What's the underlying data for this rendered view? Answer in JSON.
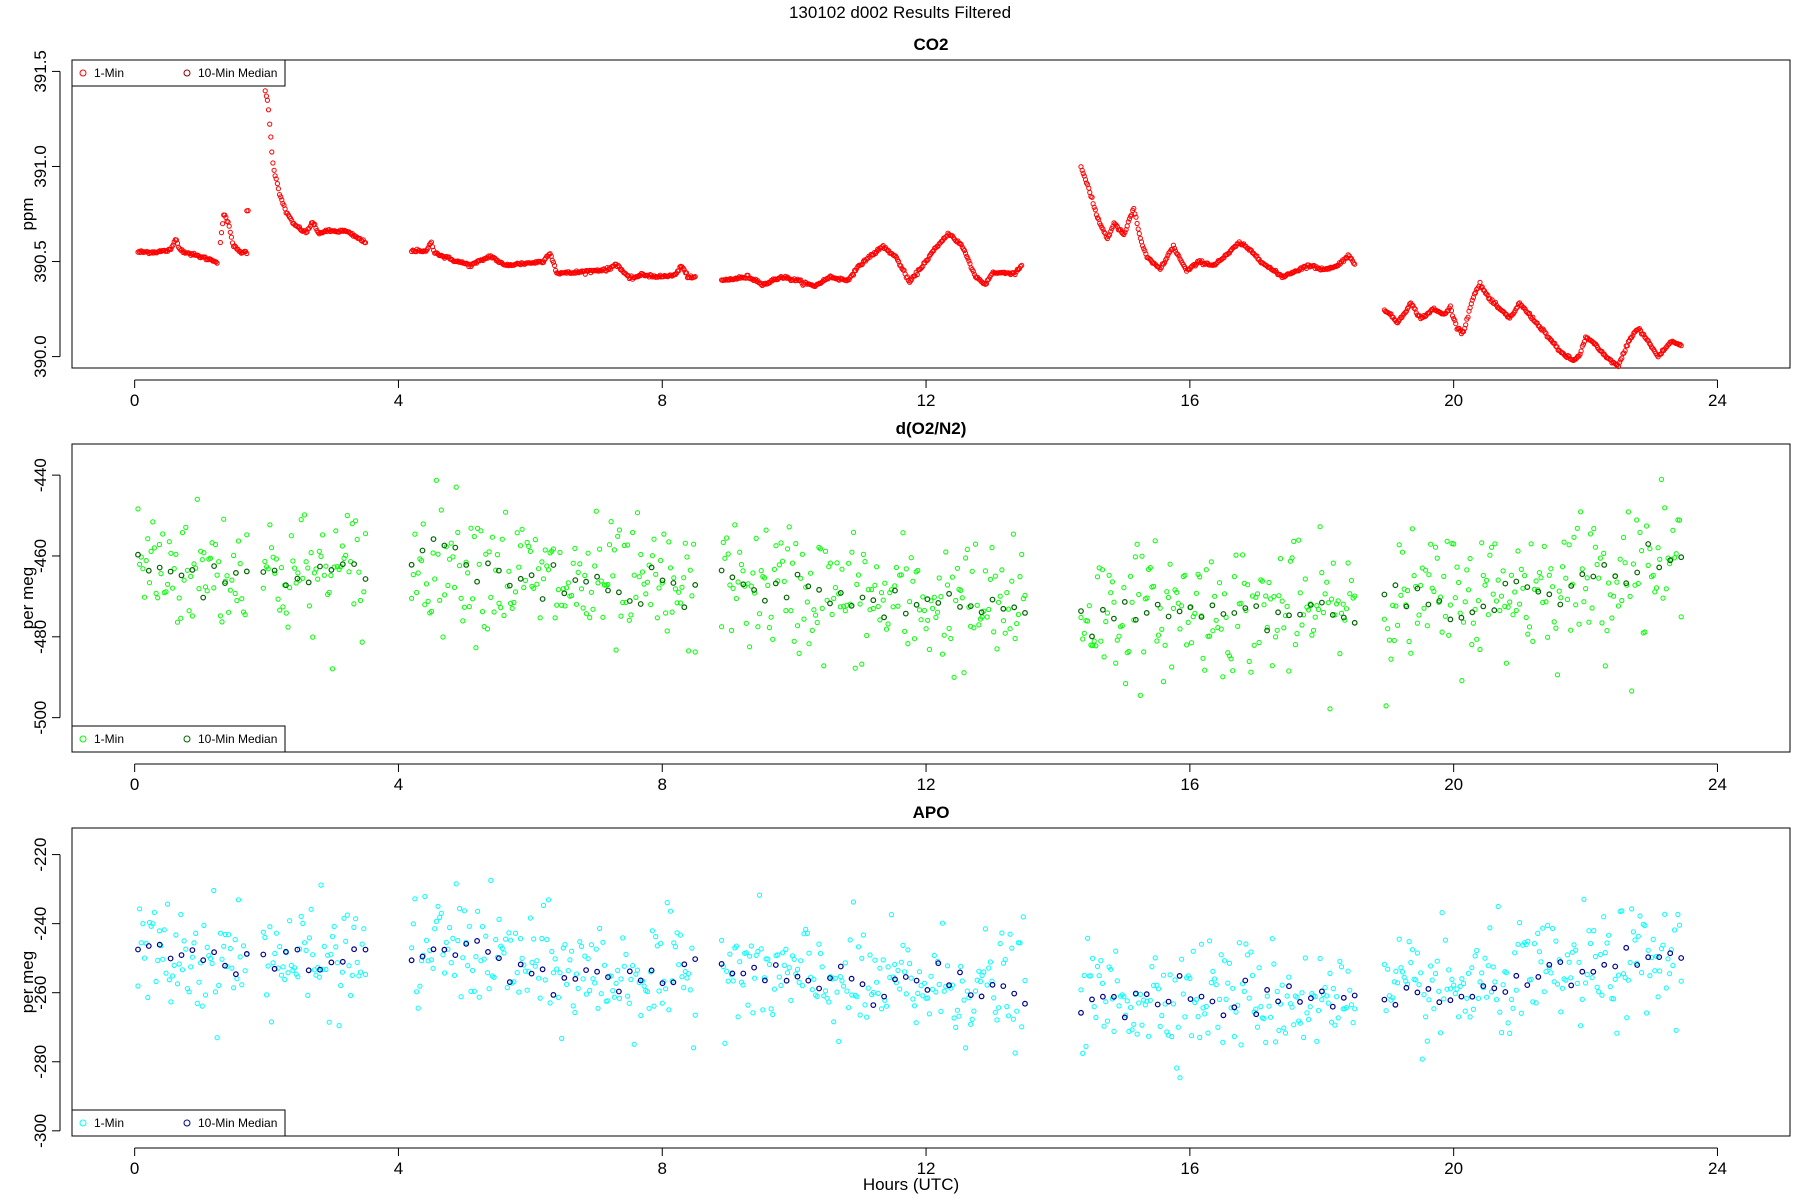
{
  "figure": {
    "title": "130102   d002   Results Filtered",
    "xlabel": "Hours (UTC)"
  },
  "chart_data": [
    {
      "type": "scatter",
      "title": "CO2",
      "ylabel": "ppm",
      "xlim": [
        -0.95,
        25.1
      ],
      "ylim": [
        389.94,
        391.56
      ],
      "xticks": [
        0,
        4,
        8,
        12,
        16,
        20,
        24
      ],
      "yticks": [
        390.0,
        390.5,
        391.0,
        391.5
      ],
      "ytick_labels": [
        "390.0",
        "390.5",
        "391.0",
        "391.5"
      ],
      "legend_position": "top-left",
      "series": [
        {
          "name": "1-Min",
          "color": "#ff0000",
          "x": [],
          "y": []
        },
        {
          "name": "10-Min Median",
          "color": "#8b0000",
          "x": [],
          "y": []
        }
      ],
      "profile": {
        "kind": "line",
        "segments": [
          {
            "x": [
              0.05,
              0.3,
              0.55,
              0.62,
              0.7,
              0.85,
              1.05,
              1.25
            ],
            "y": [
              390.55,
              390.55,
              390.56,
              390.62,
              390.56,
              390.54,
              390.52,
              390.5
            ]
          },
          {
            "x": [
              1.3,
              1.35,
              1.42,
              1.5,
              1.6,
              1.7
            ],
            "y": [
              390.6,
              390.75,
              390.7,
              390.58,
              390.55,
              390.55
            ]
          },
          {
            "x": [
              1.7,
              1.72
            ],
            "y": [
              390.77,
              390.77
            ]
          },
          {
            "x": [
              1.98,
              2.02,
              2.1,
              2.2,
              2.3,
              2.4,
              2.6,
              2.7,
              2.78,
              2.9,
              3.2,
              3.4,
              3.5
            ],
            "y": [
              391.4,
              391.34,
              391.0,
              390.85,
              390.76,
              390.7,
              390.65,
              390.71,
              390.65,
              390.66,
              390.66,
              390.62,
              390.6
            ]
          },
          {
            "x": [
              4.2,
              4.4,
              4.5,
              4.55,
              4.65,
              4.9,
              5.1,
              5.4,
              5.6,
              5.9,
              6.2,
              6.3,
              6.4,
              6.6,
              6.9,
              7.2,
              7.3,
              7.5,
              7.7,
              8.0,
              8.2,
              8.3,
              8.4,
              8.5
            ],
            "y": [
              390.56,
              390.55,
              390.6,
              390.55,
              390.53,
              390.5,
              390.48,
              390.53,
              390.48,
              390.49,
              390.5,
              390.55,
              390.44,
              390.44,
              390.45,
              390.46,
              390.49,
              390.41,
              390.43,
              390.42,
              390.43,
              390.48,
              390.41,
              390.42
            ]
          },
          {
            "x": [
              8.9,
              9.3,
              9.55,
              9.8,
              10.05,
              10.3,
              10.55,
              10.8,
              11.05,
              11.35,
              11.55,
              11.75,
              11.95,
              12.1,
              12.35,
              12.55,
              12.75,
              12.9,
              13.0,
              13.15,
              13.35,
              13.45
            ],
            "y": [
              390.4,
              390.42,
              390.38,
              390.42,
              390.4,
              390.37,
              390.42,
              390.4,
              390.5,
              390.58,
              390.52,
              390.39,
              390.48,
              390.55,
              390.65,
              390.58,
              390.42,
              390.38,
              390.44,
              390.44,
              390.44,
              390.48
            ]
          },
          {
            "x": [
              14.35,
              14.45,
              14.6,
              14.75,
              14.85,
              15.0,
              15.15,
              15.25,
              15.35,
              15.55,
              15.75,
              15.95,
              16.15,
              16.35,
              16.55,
              16.75,
              16.95,
              17.15,
              17.4,
              17.6,
              17.8,
              18.0,
              18.2,
              18.4,
              18.5
            ],
            "y": [
              391.0,
              390.9,
              390.73,
              390.62,
              390.7,
              390.64,
              390.78,
              390.62,
              390.52,
              390.46,
              390.58,
              390.45,
              390.5,
              390.48,
              390.53,
              390.6,
              390.55,
              390.48,
              390.42,
              390.45,
              390.48,
              390.46,
              390.47,
              390.53,
              390.49
            ]
          },
          {
            "x": [
              18.95,
              19.15,
              19.35,
              19.5,
              19.7,
              19.85,
              19.95,
              20.05,
              20.15,
              20.3,
              20.4,
              20.55,
              20.7,
              20.85,
              21.0,
              21.2,
              21.4,
              21.6,
              21.8,
              21.9,
              22.0,
              22.1,
              22.3,
              22.5,
              22.65,
              22.8,
              22.95,
              23.1,
              23.3,
              23.45
            ],
            "y": [
              390.25,
              390.18,
              390.28,
              390.2,
              390.25,
              390.22,
              390.26,
              390.15,
              390.13,
              390.32,
              390.38,
              390.3,
              390.25,
              390.2,
              390.28,
              390.2,
              390.12,
              390.03,
              389.98,
              390.0,
              390.1,
              390.08,
              390.0,
              389.95,
              390.08,
              390.15,
              390.08,
              390.0,
              390.08,
              390.06
            ]
          }
        ],
        "median_segments": []
      }
    },
    {
      "type": "scatter",
      "title": "d(O2/N2)",
      "ylabel": "per meg",
      "xlim": [
        -0.95,
        25.1
      ],
      "ylim": [
        -508.5,
        -432.3
      ],
      "xticks": [
        0,
        4,
        8,
        12,
        16,
        20,
        24
      ],
      "yticks": [
        -500,
        -480,
        -460,
        -440
      ],
      "ytick_labels": [
        "-500",
        "-480",
        "-460",
        "-440"
      ],
      "legend_position": "bottom-left",
      "series": [
        {
          "name": "1-Min",
          "color": "#00ff00",
          "x": [],
          "y": []
        },
        {
          "name": "10-Min Median",
          "color": "#006400",
          "x": [],
          "y": []
        }
      ],
      "profile": {
        "kind": "scatter",
        "segments": [
          {
            "x": [
              0.05,
              0.9,
              1.7
            ],
            "y": [
              -462,
              -463,
              -464
            ]
          },
          {
            "x": [
              1.95,
              2.7,
              3.5
            ],
            "y": [
              -464,
              -465,
              -464
            ]
          },
          {
            "x": [
              4.2,
              4.8,
              6.3,
              8.5
            ],
            "y": [
              -461,
              -460,
              -467,
              -469
            ]
          },
          {
            "x": [
              8.9,
              11.2,
              13.5
            ],
            "y": [
              -466,
              -471,
              -473
            ]
          },
          {
            "x": [
              14.35,
              16.4,
              18.5
            ],
            "y": [
              -474,
              -473,
              -474
            ]
          },
          {
            "x": [
              18.95,
              21.2,
              23.45
            ],
            "y": [
              -472,
              -468,
              -461
            ]
          }
        ],
        "scatter_sd": 8
      }
    },
    {
      "type": "scatter",
      "title": "APO",
      "ylabel": "per meg",
      "xlim": [
        -0.95,
        25.1
      ],
      "ylim": [
        -301.5,
        -212.3
      ],
      "xticks": [
        0,
        4,
        8,
        12,
        16,
        20,
        24
      ],
      "yticks": [
        -300,
        -280,
        -260,
        -240,
        -220
      ],
      "ytick_labels": [
        "-300",
        "-280",
        "-260",
        "-240",
        "-220"
      ],
      "legend_position": "bottom-left",
      "series": [
        {
          "name": "1-Min",
          "color": "#00ffff",
          "x": [],
          "y": []
        },
        {
          "name": "10-Min Median",
          "color": "#00008b",
          "x": [],
          "y": []
        }
      ],
      "profile": {
        "kind": "scatter",
        "segments": [
          {
            "x": [
              0.05,
              0.9,
              1.7
            ],
            "y": [
              -249,
              -250,
              -249
            ]
          },
          {
            "x": [
              1.95,
              2.7,
              3.5
            ],
            "y": [
              -249,
              -251,
              -250
            ]
          },
          {
            "x": [
              4.2,
              4.8,
              6.3,
              8.5
            ],
            "y": [
              -249,
              -246,
              -254,
              -256
            ]
          },
          {
            "x": [
              8.9,
              11.2,
              13.5
            ],
            "y": [
              -254,
              -258,
              -258
            ]
          },
          {
            "x": [
              14.35,
              16.4,
              18.5
            ],
            "y": [
              -262,
              -260,
              -263
            ]
          },
          {
            "x": [
              18.95,
              21.2,
              23.45
            ],
            "y": [
              -262,
              -256,
              -250
            ]
          }
        ],
        "scatter_sd": 8
      }
    }
  ]
}
